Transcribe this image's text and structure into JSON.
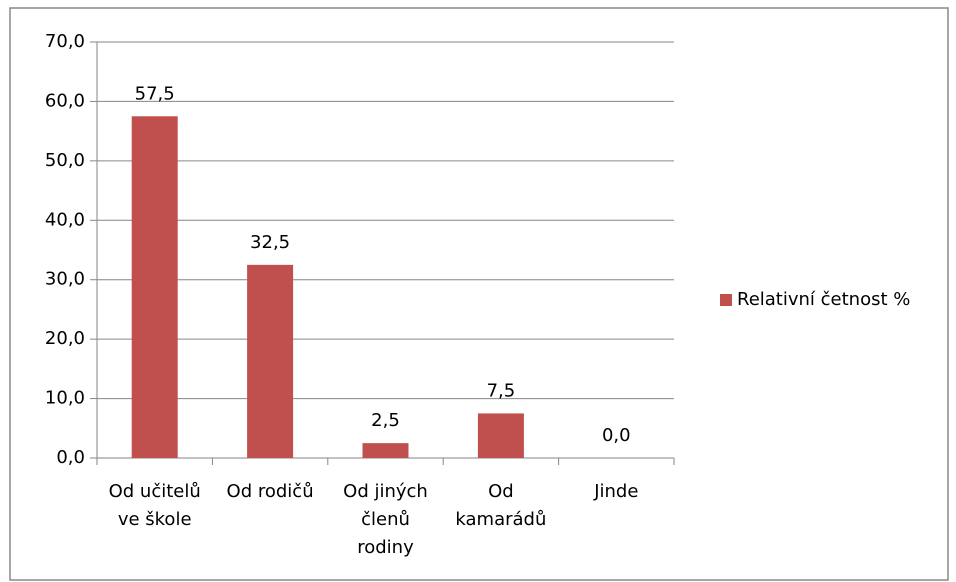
{
  "chart_data": {
    "type": "bar",
    "categories": [
      "Od učitelů ve škole",
      "Od rodičů",
      "Od jiných členů rodiny",
      "Od kamarádů",
      "Jinde"
    ],
    "series": [
      {
        "name": "Relativní četnost %",
        "color": "#c0504d",
        "values": [
          57.5,
          32.5,
          2.5,
          7.5,
          0.0
        ],
        "value_labels": [
          "57,5",
          "32,5",
          "2,5",
          "7,5",
          "0,0"
        ]
      }
    ],
    "ylim": [
      0,
      70
    ],
    "yticks": [
      {
        "value": 0,
        "label": "0,0"
      },
      {
        "value": 10,
        "label": "10,0"
      },
      {
        "value": 20,
        "label": "20,0"
      },
      {
        "value": 30,
        "label": "30,0"
      },
      {
        "value": 40,
        "label": "40,0"
      },
      {
        "value": 50,
        "label": "50,0"
      },
      {
        "value": 60,
        "label": "60,0"
      },
      {
        "value": 70,
        "label": "70,0"
      }
    ],
    "grid": true,
    "legend": "right"
  }
}
